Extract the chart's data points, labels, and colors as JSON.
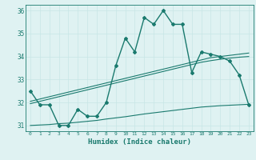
{
  "xlabel": "Humidex (Indice chaleur)",
  "x": [
    0,
    1,
    2,
    3,
    4,
    5,
    6,
    7,
    8,
    9,
    10,
    11,
    12,
    13,
    14,
    15,
    16,
    17,
    18,
    19,
    20,
    21,
    22,
    23
  ],
  "y_main": [
    32.5,
    31.9,
    31.9,
    31.0,
    31.0,
    31.7,
    31.4,
    31.4,
    32.0,
    33.6,
    34.8,
    34.2,
    35.7,
    35.4,
    36.0,
    35.4,
    35.4,
    33.3,
    34.2,
    34.1,
    34.0,
    33.8,
    33.2,
    31.9
  ],
  "y_trend_upper": [
    32.05,
    32.15,
    32.25,
    32.35,
    32.45,
    32.55,
    32.65,
    32.75,
    32.85,
    32.95,
    33.05,
    33.15,
    33.25,
    33.35,
    33.45,
    33.55,
    33.65,
    33.75,
    33.85,
    33.95,
    34.0,
    34.05,
    34.1,
    34.15
  ],
  "y_trend_lower": [
    31.95,
    32.05,
    32.15,
    32.25,
    32.35,
    32.45,
    32.55,
    32.65,
    32.75,
    32.85,
    32.95,
    33.05,
    33.15,
    33.25,
    33.35,
    33.45,
    33.55,
    33.65,
    33.75,
    33.82,
    33.88,
    33.93,
    33.97,
    34.0
  ],
  "y_bottom": [
    31.0,
    31.02,
    31.04,
    31.08,
    31.1,
    31.14,
    31.18,
    31.22,
    31.28,
    31.33,
    31.38,
    31.44,
    31.5,
    31.55,
    31.6,
    31.65,
    31.7,
    31.75,
    31.8,
    31.83,
    31.86,
    31.88,
    31.9,
    31.92
  ],
  "line_color": "#1a7a6e",
  "bg_color": "#dff2f2",
  "grid_color_major": "#c8e6e6",
  "grid_color_minor": "#d8eeee",
  "ylim": [
    30.75,
    36.25
  ],
  "xlim": [
    -0.5,
    23.5
  ],
  "yticks": [
    31,
    32,
    33,
    34,
    35,
    36
  ]
}
